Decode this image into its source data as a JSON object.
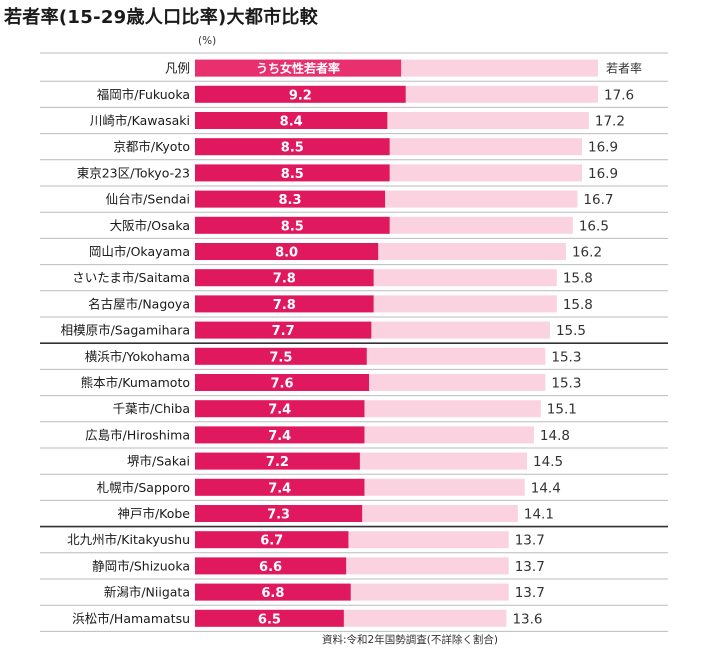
{
  "title": "若者率(15-29歳人口比率)大都市比較",
  "unit": "(%)",
  "source": "資料:令和2年国勢調査(不詳除く割合)",
  "colors": {
    "female": "#e0195e",
    "total": "#fbd3e0",
    "female_legend": "#e8306e"
  },
  "chart_data": {
    "type": "bar",
    "orientation": "horizontal",
    "stacking": "overlay",
    "legend": {
      "label": "凡例",
      "entries": [
        "うち女性若者率",
        "若者率"
      ],
      "placement": "top-row"
    },
    "categories": [
      "福岡市/Fukuoka",
      "川崎市/Kawasaki",
      "京都市/Kyoto",
      "東京23区/Tokyo-23",
      "仙台市/Sendai",
      "大阪市/Osaka",
      "岡山市/Okayama",
      "さいたま市/Saitama",
      "名古屋市/Nagoya",
      "相模原市/Sagamihara",
      "横浜市/Yokohama",
      "熊本市/Kumamoto",
      "千葉市/Chiba",
      "広島市/Hiroshima",
      "堺市/Sakai",
      "札幌市/Sapporo",
      "神戸市/Kobe",
      "北九州市/Kitakyushu",
      "静岡市/Shizuoka",
      "新潟市/Niigata",
      "浜松市/Hamamatsu"
    ],
    "series": [
      {
        "name": "うち女性若者率",
        "values": [
          9.2,
          8.4,
          8.5,
          8.5,
          8.3,
          8.5,
          8.0,
          7.8,
          7.8,
          7.7,
          7.5,
          7.6,
          7.4,
          7.4,
          7.2,
          7.4,
          7.3,
          6.7,
          6.6,
          6.8,
          6.5
        ],
        "labels": [
          "9.2",
          "8.4",
          "8.5",
          "8.5",
          "8.3",
          "8.5",
          "8.0",
          "7.8",
          "7.8",
          "7.7",
          "7.5",
          "7.6",
          "7.4",
          "7.4",
          "7.2",
          "7.4",
          "7.3",
          "6.7",
          "6.6",
          "6.8",
          "6.5"
        ]
      },
      {
        "name": "若者率",
        "values": [
          17.6,
          17.2,
          16.9,
          16.9,
          16.7,
          16.5,
          16.2,
          15.8,
          15.8,
          15.5,
          15.3,
          15.3,
          15.1,
          14.8,
          14.5,
          14.4,
          14.1,
          13.7,
          13.7,
          13.7,
          13.6
        ],
        "labels": [
          "17.6",
          "17.2",
          "16.9",
          "16.9",
          "16.7",
          "16.5",
          "16.2",
          "15.8",
          "15.8",
          "15.5",
          "15.3",
          "15.3",
          "15.1",
          "14.8",
          "14.5",
          "14.4",
          "14.1",
          "13.7",
          "13.7",
          "13.7",
          "13.6"
        ]
      }
    ],
    "group_breaks_after": [
      "相模原市/Sagamihara",
      "神戸市/Kobe"
    ],
    "grid": false
  }
}
